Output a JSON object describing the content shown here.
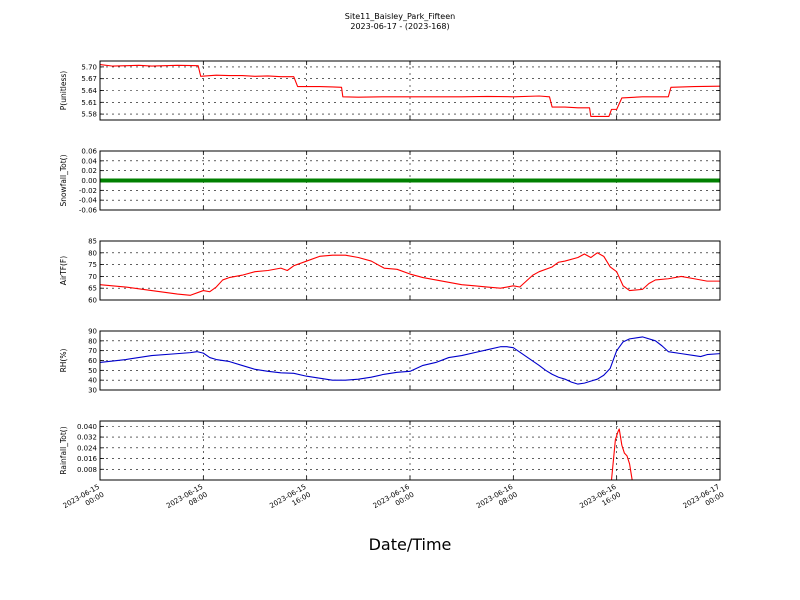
{
  "title_line1": "Site11_Baisley_Park_Fifteen",
  "title_line2": "2023-06-17 - (2023-168)",
  "xlabel": "Date/Time",
  "chart_data": {
    "type": "line",
    "x_tick_labels": [
      [
        "2023-06-15",
        "00:00"
      ],
      [
        "2023-06-15",
        "08:00"
      ],
      [
        "2023-06-15",
        "16:00"
      ],
      [
        "2023-06-16",
        "00:00"
      ],
      [
        "2023-06-16",
        "08:00"
      ],
      [
        "2023-06-16",
        "16:00"
      ],
      [
        "2023-06-17",
        "00:00"
      ]
    ],
    "xlim_hours": [
      0,
      48
    ],
    "panels": [
      {
        "ylabel": "P(unitless)",
        "color": "#ff0000",
        "ylim": [
          5.565,
          5.715
        ],
        "yticks": [
          5.58,
          5.61,
          5.64,
          5.67,
          5.7
        ],
        "tick_labels": [
          "5.58",
          "5.61",
          "5.64",
          "5.67",
          "5.70"
        ],
        "points": [
          [
            0,
            5.706
          ],
          [
            1,
            5.702
          ],
          [
            2,
            5.703
          ],
          [
            3,
            5.704
          ],
          [
            4,
            5.702
          ],
          [
            5,
            5.703
          ],
          [
            6,
            5.704
          ],
          [
            7.6,
            5.703
          ],
          [
            7.8,
            5.676
          ],
          [
            9,
            5.679
          ],
          [
            10,
            5.678
          ],
          [
            11,
            5.678
          ],
          [
            12,
            5.676
          ],
          [
            13,
            5.677
          ],
          [
            14,
            5.675
          ],
          [
            15,
            5.675
          ],
          [
            15.3,
            5.65
          ],
          [
            17,
            5.65
          ],
          [
            18,
            5.649
          ],
          [
            18.7,
            5.648
          ],
          [
            18.8,
            5.624
          ],
          [
            20,
            5.623
          ],
          [
            22,
            5.624
          ],
          [
            24,
            5.624
          ],
          [
            26,
            5.624
          ],
          [
            28,
            5.624
          ],
          [
            30,
            5.625
          ],
          [
            32,
            5.624
          ],
          [
            34,
            5.626
          ],
          [
            34.8,
            5.624
          ],
          [
            35,
            5.598
          ],
          [
            36,
            5.598
          ],
          [
            37,
            5.596
          ],
          [
            37.9,
            5.596
          ],
          [
            38,
            5.574
          ],
          [
            39,
            5.574
          ],
          [
            39.4,
            5.574
          ],
          [
            39.6,
            5.592
          ],
          [
            40,
            5.592
          ],
          [
            40.4,
            5.621
          ],
          [
            42,
            5.624
          ],
          [
            44,
            5.624
          ],
          [
            44.2,
            5.648
          ],
          [
            46,
            5.65
          ],
          [
            48,
            5.651
          ]
        ]
      },
      {
        "ylabel": "Snowfall_Tot()",
        "color": "#008000",
        "ylim": [
          -0.06,
          0.06
        ],
        "yticks": [
          -0.06,
          -0.04,
          -0.02,
          0.0,
          0.02,
          0.04,
          0.06
        ],
        "tick_labels": [
          "-0.06",
          "-0.04",
          "-0.02",
          "0.00",
          "0.02",
          "0.04",
          "0.06"
        ],
        "points": [
          [
            0,
            0
          ],
          [
            48,
            0
          ]
        ]
      },
      {
        "ylabel": "AirTF(F)",
        "color": "#ff0000",
        "ylim": [
          60,
          85
        ],
        "yticks": [
          60,
          65,
          70,
          75,
          80,
          85
        ],
        "tick_labels": [
          "60",
          "65",
          "70",
          "75",
          "80",
          "85"
        ],
        "points": [
          [
            0,
            66.5
          ],
          [
            2,
            65.5
          ],
          [
            4,
            64
          ],
          [
            6,
            62.5
          ],
          [
            7,
            62
          ],
          [
            8,
            64
          ],
          [
            8.5,
            63.5
          ],
          [
            9,
            65.5
          ],
          [
            9.5,
            68.5
          ],
          [
            10,
            69.5
          ],
          [
            11,
            70.5
          ],
          [
            12,
            72
          ],
          [
            13,
            72.5
          ],
          [
            14,
            73.5
          ],
          [
            14.5,
            72.5
          ],
          [
            15,
            74.5
          ],
          [
            16,
            76.5
          ],
          [
            17,
            78.5
          ],
          [
            18,
            79
          ],
          [
            19,
            79
          ],
          [
            20,
            78
          ],
          [
            21,
            76.5
          ],
          [
            22,
            73.5
          ],
          [
            23,
            73
          ],
          [
            24,
            71
          ],
          [
            25,
            69.5
          ],
          [
            26,
            68.5
          ],
          [
            27,
            67.5
          ],
          [
            28,
            66.5
          ],
          [
            29,
            66
          ],
          [
            30,
            65.5
          ],
          [
            31,
            65
          ],
          [
            32,
            66
          ],
          [
            32.5,
            65.5
          ],
          [
            33,
            68
          ],
          [
            33.5,
            70.5
          ],
          [
            34,
            72
          ],
          [
            35,
            74
          ],
          [
            35.5,
            76
          ],
          [
            36,
            76.5
          ],
          [
            37,
            78
          ],
          [
            37.5,
            79.5
          ],
          [
            38,
            78
          ],
          [
            38.5,
            80
          ],
          [
            39,
            78.5
          ],
          [
            39.5,
            74
          ],
          [
            40,
            72
          ],
          [
            40.5,
            66
          ],
          [
            41,
            64
          ],
          [
            42,
            64.5
          ],
          [
            42.5,
            67
          ],
          [
            43,
            68.5
          ],
          [
            44,
            69
          ],
          [
            45,
            70
          ],
          [
            46,
            69
          ],
          [
            47,
            68
          ],
          [
            48,
            68
          ]
        ]
      },
      {
        "ylabel": "RH(%)",
        "color": "#0000cc",
        "ylim": [
          30,
          90
        ],
        "yticks": [
          30,
          40,
          50,
          60,
          70,
          80,
          90
        ],
        "tick_labels": [
          "30",
          "40",
          "50",
          "60",
          "70",
          "80",
          "90"
        ],
        "points": [
          [
            0,
            58
          ],
          [
            2,
            61
          ],
          [
            4,
            65
          ],
          [
            6,
            67
          ],
          [
            7,
            68
          ],
          [
            7.5,
            69
          ],
          [
            8,
            67.5
          ],
          [
            8.5,
            63
          ],
          [
            9,
            61
          ],
          [
            10,
            59
          ],
          [
            11,
            55
          ],
          [
            12,
            51
          ],
          [
            13,
            49
          ],
          [
            14,
            47.5
          ],
          [
            15,
            47
          ],
          [
            16,
            44
          ],
          [
            17,
            42
          ],
          [
            18,
            40
          ],
          [
            19,
            40
          ],
          [
            20,
            41
          ],
          [
            21,
            43
          ],
          [
            22,
            46
          ],
          [
            23,
            48
          ],
          [
            24,
            49
          ],
          [
            25,
            55
          ],
          [
            26,
            58
          ],
          [
            27,
            63
          ],
          [
            28,
            65
          ],
          [
            29,
            68
          ],
          [
            30,
            71
          ],
          [
            31,
            74
          ],
          [
            31.5,
            74
          ],
          [
            32,
            73
          ],
          [
            33,
            64
          ],
          [
            34,
            55
          ],
          [
            34.5,
            50
          ],
          [
            35,
            46
          ],
          [
            35.5,
            43
          ],
          [
            36,
            41
          ],
          [
            36.5,
            38
          ],
          [
            37,
            36
          ],
          [
            37.5,
            37
          ],
          [
            38,
            39
          ],
          [
            38.5,
            41
          ],
          [
            39,
            45
          ],
          [
            39.5,
            52
          ],
          [
            40,
            70
          ],
          [
            40.5,
            79
          ],
          [
            41,
            82
          ],
          [
            42,
            84
          ],
          [
            43,
            80
          ],
          [
            43.5,
            75
          ],
          [
            44,
            69
          ],
          [
            45,
            67
          ],
          [
            46,
            65
          ],
          [
            46.5,
            64
          ],
          [
            47,
            66
          ],
          [
            48,
            67
          ]
        ]
      },
      {
        "ylabel": "Rainfall_Tot()",
        "color": "#ff0000",
        "ylim": [
          0,
          0.044
        ],
        "yticks": [
          0.008,
          0.016,
          0.024,
          0.032,
          0.04
        ],
        "tick_labels": [
          "0.008",
          "0.016",
          "0.024",
          "0.032",
          "0.040"
        ],
        "points": [
          [
            0,
            0
          ],
          [
            39.6,
            0
          ],
          [
            39.9,
            0.03
          ],
          [
            40.1,
            0.036
          ],
          [
            40.2,
            0.038
          ],
          [
            40.4,
            0.026
          ],
          [
            40.6,
            0.02
          ],
          [
            40.8,
            0.018
          ],
          [
            41,
            0.012
          ],
          [
            41.2,
            0
          ],
          [
            48,
            0
          ]
        ]
      }
    ]
  }
}
